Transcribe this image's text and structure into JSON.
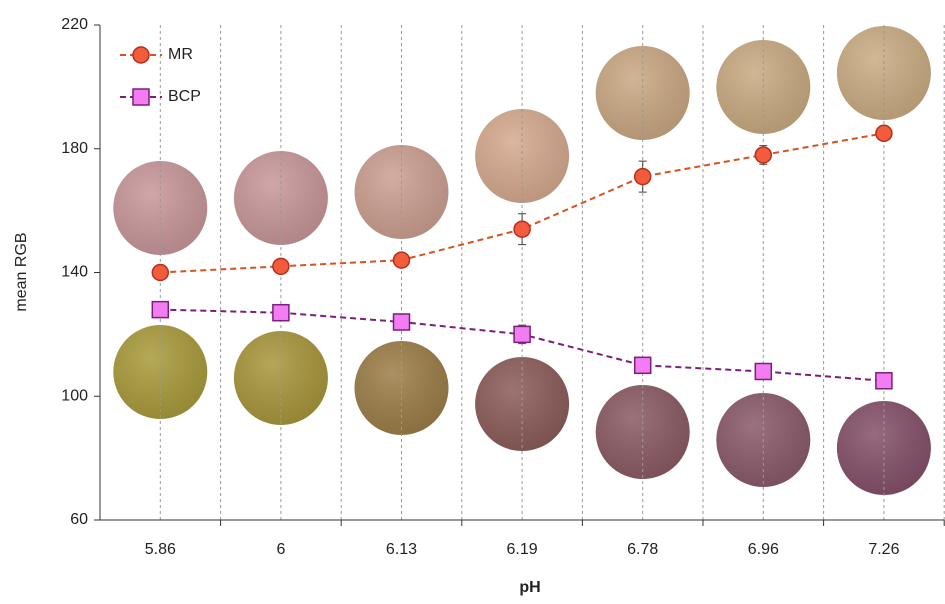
{
  "chart_data": {
    "type": "line",
    "x_label": "pH",
    "y_label": "mean RGB",
    "categories": [
      "5.86",
      "6",
      "6.13",
      "6.19",
      "6.78",
      "6.96",
      "7.26"
    ],
    "series": [
      {
        "name": "MR",
        "color": "#d4531f",
        "marker": "circle",
        "marker_color": "#f25c3c",
        "values": [
          140,
          142,
          144,
          154,
          171,
          178,
          185
        ],
        "errors": [
          2,
          1.5,
          1.5,
          5,
          5,
          3,
          2
        ]
      },
      {
        "name": "BCP",
        "color": "#7a1f7a",
        "marker": "square",
        "marker_color": "#f27cf2",
        "values": [
          128,
          127,
          124,
          120,
          110,
          108,
          105
        ],
        "errors": [
          1.5,
          1,
          1,
          3,
          2,
          1.5,
          1
        ]
      }
    ],
    "ylim": [
      60,
      220
    ],
    "yticks": [
      60,
      100,
      140,
      180,
      220
    ],
    "grid": true,
    "legend": "top-left"
  }
}
